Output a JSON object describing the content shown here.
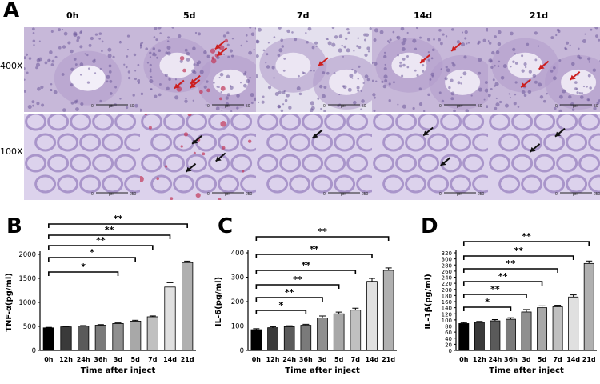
{
  "panel_labels": {
    "a": "A",
    "b": "B",
    "c": "C",
    "d": "D"
  },
  "micrograph": {
    "time_points": [
      "0h",
      "5d",
      "7d",
      "14d",
      "21d"
    ],
    "magnifications": [
      "400X",
      "100X"
    ],
    "scale_bar_labels": {
      "400X": [
        "0",
        "μm",
        "50"
      ],
      "100X": [
        "0",
        "μm",
        "250"
      ]
    },
    "colors": {
      "tissue_400_top": "#c7b8d9",
      "tissue_100_bottom": "#dcd2ec",
      "arrow_400": "#cc1f1f",
      "arrow_100": "#111111",
      "hemorrhage": "#c2375a"
    },
    "arrows_per_panel_400X": [
      0,
      5,
      1,
      2,
      3
    ],
    "arrows_per_panel_100X": [
      0,
      3,
      1,
      2,
      2
    ]
  },
  "chart_data": [
    {
      "type": "bar",
      "ylabel": "TNF-α(pg/ml)",
      "xlabel": "Time after inject",
      "categories": [
        "0h",
        "12h",
        "24h",
        "36h",
        "3d",
        "5d",
        "7d",
        "14d",
        "21d"
      ],
      "values": [
        470,
        490,
        505,
        525,
        560,
        610,
        700,
        1320,
        1830
      ],
      "errors": [
        10,
        12,
        12,
        12,
        12,
        18,
        18,
        90,
        30
      ],
      "ylim": [
        0,
        2000
      ],
      "yticks": [
        0,
        500,
        1000,
        1500,
        2000
      ],
      "significance": [
        {
          "from": "0h",
          "to": "3d",
          "label": "*"
        },
        {
          "from": "0h",
          "to": "5d",
          "label": "*"
        },
        {
          "from": "0h",
          "to": "7d",
          "label": "**"
        },
        {
          "from": "0h",
          "to": "14d",
          "label": "**"
        },
        {
          "from": "0h",
          "to": "21d",
          "label": "**"
        }
      ]
    },
    {
      "type": "bar",
      "ylabel": "IL-6(pg/ml)",
      "xlabel": "Time after inject",
      "categories": [
        "0h",
        "12h",
        "24h",
        "36h",
        "3d",
        "5d",
        "7d",
        "14d",
        "21d"
      ],
      "values": [
        85,
        93,
        97,
        103,
        133,
        150,
        165,
        283,
        328
      ],
      "errors": [
        4,
        4,
        4,
        4,
        8,
        7,
        8,
        12,
        10
      ],
      "ylim": [
        0,
        400
      ],
      "yticks": [
        0,
        100,
        200,
        300,
        400
      ],
      "significance": [
        {
          "from": "0h",
          "to": "36h",
          "label": "*"
        },
        {
          "from": "0h",
          "to": "3d",
          "label": "**"
        },
        {
          "from": "0h",
          "to": "5d",
          "label": "**"
        },
        {
          "from": "0h",
          "to": "7d",
          "label": "**"
        },
        {
          "from": "0h",
          "to": "14d",
          "label": "**"
        },
        {
          "from": "0h",
          "to": "21d",
          "label": "**"
        }
      ]
    },
    {
      "type": "bar",
      "ylabel": "IL-1β(pg/ml)",
      "xlabel": "Time after inject",
      "categories": [
        "0h",
        "12h",
        "24h",
        "36h",
        "3d",
        "5d",
        "7d",
        "14d",
        "21d"
      ],
      "values": [
        88,
        92,
        97,
        102,
        126,
        140,
        143,
        175,
        285
      ],
      "errors": [
        3,
        3,
        4,
        5,
        8,
        6,
        5,
        7,
        8
      ],
      "ylim": [
        0,
        320
      ],
      "yticks": [
        0,
        20,
        40,
        60,
        80,
        100,
        120,
        140,
        160,
        180,
        200,
        220,
        240,
        260,
        280,
        300,
        320
      ],
      "significance": [
        {
          "from": "0h",
          "to": "36h",
          "label": "*"
        },
        {
          "from": "0h",
          "to": "3d",
          "label": "**"
        },
        {
          "from": "0h",
          "to": "5d",
          "label": "**"
        },
        {
          "from": "0h",
          "to": "7d",
          "label": "**"
        },
        {
          "from": "0h",
          "to": "14d",
          "label": "**"
        },
        {
          "from": "0h",
          "to": "21d",
          "label": "**"
        }
      ]
    }
  ],
  "bar_colors": [
    "#000000",
    "#3a3a3a",
    "#5a5a5a",
    "#7a7a7a",
    "#8f8f8f",
    "#a8a8a8",
    "#c0c0c0",
    "#e0e0e0",
    "#b0b0b0"
  ]
}
